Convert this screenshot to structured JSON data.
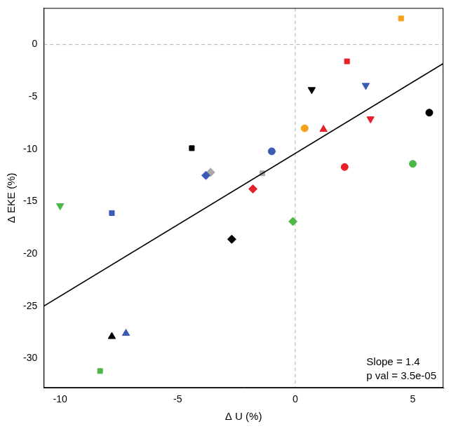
{
  "chart_data": {
    "type": "scatter",
    "x_label": "Δ U (%)",
    "y_label": "Δ EKE (%)",
    "xlim": [
      -10.7,
      6.3
    ],
    "ylim": [
      -32.8,
      3.5
    ],
    "xticks": [
      -10,
      -5,
      0,
      5
    ],
    "yticks": [
      -30,
      -25,
      -20,
      -15,
      -10,
      -5,
      0
    ],
    "grid": false,
    "reference_lines": {
      "x": [
        0
      ],
      "y": [
        0
      ]
    },
    "annotations": [
      "Slope = 1.4",
      "p val = 3.5e-05"
    ],
    "series": [
      {
        "type": "line",
        "color": "#000000",
        "line_style": "solid",
        "x": [
          -10.7,
          6.3
        ],
        "values": [
          -25,
          -1.8
        ]
      },
      {
        "color": "#f5a11c",
        "marker": "square",
        "x": [
          4.5
        ],
        "values": [
          2.5
        ]
      },
      {
        "color": "#e8202a",
        "marker": "square",
        "x": [
          2.2
        ],
        "values": [
          -1.6
        ]
      },
      {
        "color": "#000000",
        "marker": "triangle-down",
        "x": [
          0.7
        ],
        "values": [
          -4.3
        ]
      },
      {
        "color": "#3b5bb5",
        "marker": "triangle-down",
        "x": [
          3.0
        ],
        "values": [
          -3.9
        ]
      },
      {
        "color": "#000000",
        "marker": "circle",
        "x": [
          5.7
        ],
        "values": [
          -6.5
        ]
      },
      {
        "color": "#e8202a",
        "marker": "triangle-down",
        "x": [
          3.2
        ],
        "values": [
          -7.1
        ]
      },
      {
        "color": "#f5a11c",
        "marker": "circle",
        "x": [
          0.4
        ],
        "values": [
          -8.0
        ]
      },
      {
        "color": "#e8202a",
        "marker": "triangle",
        "x": [
          1.2
        ],
        "values": [
          -8.1
        ]
      },
      {
        "color": "#000000",
        "marker": "square",
        "x": [
          -4.4
        ],
        "values": [
          -9.9
        ]
      },
      {
        "color": "#3b5bb5",
        "marker": "circle",
        "x": [
          -1.0
        ],
        "values": [
          -10.2
        ]
      },
      {
        "color": "#e8202a",
        "marker": "circle",
        "x": [
          2.1
        ],
        "values": [
          -11.7
        ]
      },
      {
        "color": "#4db848",
        "marker": "circle",
        "x": [
          5.0
        ],
        "values": [
          -11.4
        ]
      },
      {
        "color": "#3b5bb5",
        "marker": "diamond",
        "x": [
          -3.8
        ],
        "values": [
          -12.5
        ]
      },
      {
        "color": "#a9a9a9",
        "marker": "diamond",
        "x": [
          -3.6
        ],
        "values": [
          -12.2
        ]
      },
      {
        "color": "#a9a9a9",
        "marker": "square",
        "x": [
          -1.4
        ],
        "values": [
          -12.3
        ]
      },
      {
        "color": "#e8202a",
        "marker": "diamond",
        "x": [
          -1.8
        ],
        "values": [
          -13.8
        ]
      },
      {
        "color": "#4db848",
        "marker": "triangle-down",
        "x": [
          -10.0
        ],
        "values": [
          -15.4
        ]
      },
      {
        "color": "#3b5bb5",
        "marker": "square",
        "x": [
          -7.8
        ],
        "values": [
          -16.1
        ]
      },
      {
        "color": "#4db848",
        "marker": "diamond",
        "x": [
          -0.1
        ],
        "values": [
          -16.9
        ]
      },
      {
        "color": "#000000",
        "marker": "diamond",
        "x": [
          -2.7
        ],
        "values": [
          -18.6
        ]
      },
      {
        "color": "#000000",
        "marker": "triangle",
        "x": [
          -7.8
        ],
        "values": [
          -27.9
        ]
      },
      {
        "color": "#3b5bb5",
        "marker": "triangle",
        "x": [
          -7.2
        ],
        "values": [
          -27.6
        ]
      },
      {
        "color": "#4db848",
        "marker": "square",
        "x": [
          -8.3
        ],
        "values": [
          -31.2
        ]
      }
    ]
  }
}
